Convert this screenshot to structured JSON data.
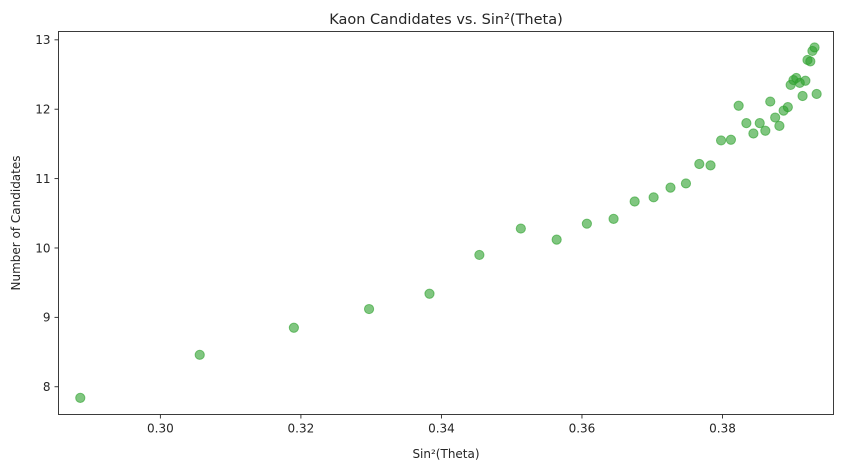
{
  "chart_data": {
    "type": "scatter",
    "title": "Kaon Candidates vs. Sin²(Theta)",
    "xlabel": "Sin²(Theta)",
    "ylabel": "Number of Candidates",
    "xlim": [
      0.2855,
      0.3958
    ],
    "ylim": [
      7.6,
      13.12
    ],
    "xticks": [
      0.3,
      0.32,
      0.34,
      0.36,
      0.38
    ],
    "xtick_labels": [
      "0.30",
      "0.32",
      "0.34",
      "0.36",
      "0.38"
    ],
    "yticks": [
      8,
      9,
      10,
      11,
      12,
      13
    ],
    "ytick_labels": [
      "8",
      "9",
      "10",
      "11",
      "12",
      "13"
    ],
    "grid": false,
    "marker_color": "#2ca02c",
    "marker_alpha": 0.6,
    "points": [
      {
        "x": 0.2886,
        "y": 7.84
      },
      {
        "x": 0.3056,
        "y": 8.46
      },
      {
        "x": 0.319,
        "y": 8.85
      },
      {
        "x": 0.3297,
        "y": 9.12
      },
      {
        "x": 0.3383,
        "y": 9.34
      },
      {
        "x": 0.3454,
        "y": 9.9
      },
      {
        "x": 0.3513,
        "y": 10.28
      },
      {
        "x": 0.3564,
        "y": 10.12
      },
      {
        "x": 0.3607,
        "y": 10.35
      },
      {
        "x": 0.3645,
        "y": 10.42
      },
      {
        "x": 0.3675,
        "y": 10.67
      },
      {
        "x": 0.3702,
        "y": 10.73
      },
      {
        "x": 0.3726,
        "y": 10.87
      },
      {
        "x": 0.3748,
        "y": 10.93
      },
      {
        "x": 0.3767,
        "y": 11.21
      },
      {
        "x": 0.3783,
        "y": 11.19
      },
      {
        "x": 0.3798,
        "y": 11.55
      },
      {
        "x": 0.3812,
        "y": 11.56
      },
      {
        "x": 0.3823,
        "y": 12.05
      },
      {
        "x": 0.3834,
        "y": 11.8
      },
      {
        "x": 0.3844,
        "y": 11.65
      },
      {
        "x": 0.3853,
        "y": 11.8
      },
      {
        "x": 0.3861,
        "y": 11.69
      },
      {
        "x": 0.3868,
        "y": 12.11
      },
      {
        "x": 0.3875,
        "y": 11.88
      },
      {
        "x": 0.3881,
        "y": 11.76
      },
      {
        "x": 0.3887,
        "y": 11.98
      },
      {
        "x": 0.3893,
        "y": 12.03
      },
      {
        "x": 0.3897,
        "y": 12.35
      },
      {
        "x": 0.3901,
        "y": 12.42
      },
      {
        "x": 0.3905,
        "y": 12.45
      },
      {
        "x": 0.391,
        "y": 12.38
      },
      {
        "x": 0.3914,
        "y": 12.19
      },
      {
        "x": 0.3918,
        "y": 12.41
      },
      {
        "x": 0.3921,
        "y": 12.71
      },
      {
        "x": 0.3925,
        "y": 12.69
      },
      {
        "x": 0.3928,
        "y": 12.84
      },
      {
        "x": 0.3931,
        "y": 12.89
      },
      {
        "x": 0.3934,
        "y": 12.22
      }
    ]
  }
}
